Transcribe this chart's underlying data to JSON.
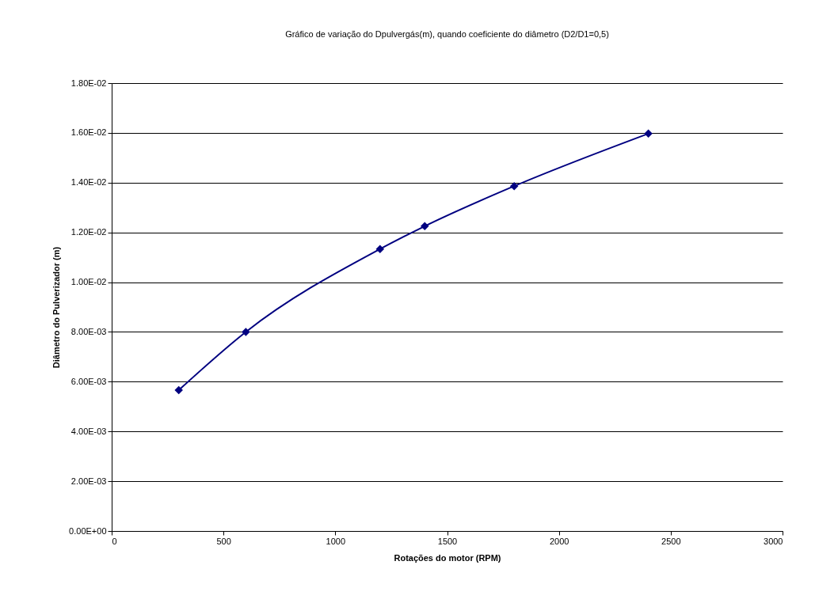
{
  "chart_data": {
    "type": "line",
    "title": "Gráfico de variação do Dpulvergás(m), quando coeficiente do diâmetro (D2/D1=0,5)",
    "xlabel": "Rotações do motor (RPM)",
    "ylabel": "Diâmetro do Pulverizador (m)",
    "x": [
      300,
      600,
      1200,
      1400,
      1800,
      2400
    ],
    "series": [
      {
        "color": "#000080",
        "values": [
          0.00566,
          0.008,
          0.01133,
          0.01225,
          0.01386,
          0.01597
        ]
      }
    ],
    "xlim": [
      0,
      3000
    ],
    "xticks": [
      0,
      500,
      1000,
      1500,
      2000,
      2500,
      3000
    ],
    "ylim": [
      0,
      0.018
    ],
    "yticks": [
      {
        "value": 0,
        "label": "0.00E+00"
      },
      {
        "value": 0.002,
        "label": "2.00E-03"
      },
      {
        "value": 0.004,
        "label": "4.00E-03"
      },
      {
        "value": 0.006,
        "label": "6.00E-03"
      },
      {
        "value": 0.008,
        "label": "8.00E-03"
      },
      {
        "value": 0.01,
        "label": "1.00E-02"
      },
      {
        "value": 0.012,
        "label": "1.20E-02"
      },
      {
        "value": 0.014,
        "label": "1.40E-02"
      },
      {
        "value": 0.016,
        "label": "1.60E-02"
      },
      {
        "value": 0.018,
        "label": "1.80E-02"
      }
    ],
    "grid": "y",
    "marker": "diamond",
    "line_style": "solid"
  }
}
